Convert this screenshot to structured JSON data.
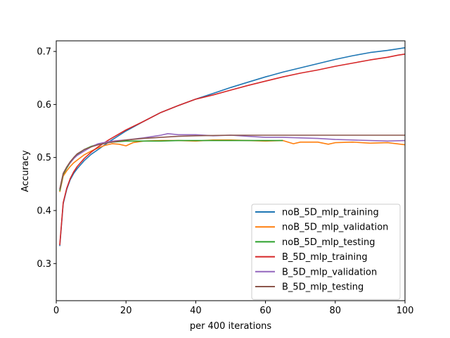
{
  "chart_data": {
    "type": "line",
    "xlabel": "per 400 iterations",
    "ylabel": "Accuracy",
    "xlim": [
      0,
      100
    ],
    "ylim": [
      0.23,
      0.72
    ],
    "xticks": [
      0,
      20,
      40,
      60,
      80,
      100
    ],
    "yticks": [
      0.3,
      0.4,
      0.5,
      0.6,
      0.7
    ],
    "ytick_labels": [
      "0.3",
      "0.4",
      "0.5",
      "0.6",
      "0.7"
    ],
    "grid": false,
    "legend_position": "lower-right",
    "series": [
      {
        "name": "noB_5D_mlp_training",
        "color": "#1f77b4",
        "x": [
          1,
          2,
          3,
          4,
          5,
          6,
          8,
          10,
          12,
          15,
          20,
          25,
          30,
          35,
          40,
          45,
          50,
          55,
          60,
          65,
          70,
          75,
          80,
          85,
          90,
          95,
          98,
          100
        ],
        "y": [
          0.333,
          0.413,
          0.44,
          0.458,
          0.47,
          0.479,
          0.494,
          0.506,
          0.515,
          0.529,
          0.55,
          0.568,
          0.585,
          0.598,
          0.61,
          0.621,
          0.632,
          0.642,
          0.652,
          0.661,
          0.669,
          0.677,
          0.685,
          0.692,
          0.698,
          0.702,
          0.705,
          0.707
        ]
      },
      {
        "name": "noB_5D_mlp_validation",
        "color": "#ff7f0e",
        "x": [
          1,
          2,
          3,
          4,
          5,
          6,
          8,
          10,
          12,
          14,
          16,
          18,
          20,
          22,
          25,
          30,
          35,
          40,
          45,
          50,
          55,
          60,
          65,
          68,
          70,
          75,
          78,
          80,
          85,
          90,
          95,
          100
        ],
        "y": [
          0.435,
          0.465,
          0.475,
          0.483,
          0.49,
          0.495,
          0.505,
          0.512,
          0.518,
          0.523,
          0.526,
          0.525,
          0.522,
          0.528,
          0.531,
          0.532,
          0.532,
          0.531,
          0.533,
          0.533,
          0.532,
          0.531,
          0.532,
          0.526,
          0.529,
          0.529,
          0.525,
          0.528,
          0.529,
          0.527,
          0.528,
          0.524
        ]
      },
      {
        "name": "noB_5D_mlp_testing",
        "color": "#2ca02c",
        "x": [
          1,
          2,
          3,
          4,
          5,
          6,
          8,
          10,
          12,
          14,
          16,
          18,
          20,
          25,
          30,
          35,
          40,
          45,
          50,
          55,
          60,
          65
        ],
        "y": [
          0.437,
          0.468,
          0.48,
          0.49,
          0.498,
          0.505,
          0.515,
          0.521,
          0.525,
          0.528,
          0.529,
          0.53,
          0.531,
          0.531,
          0.531,
          0.532,
          0.532,
          0.532,
          0.532,
          0.532,
          0.532,
          0.532
        ]
      },
      {
        "name": "B_5D_mlp_training",
        "color": "#d62728",
        "x": [
          1,
          2,
          3,
          4,
          5,
          6,
          8,
          10,
          12,
          15,
          20,
          25,
          30,
          35,
          40,
          45,
          50,
          55,
          60,
          65,
          70,
          75,
          80,
          85,
          90,
          95,
          98,
          100
        ],
        "y": [
          0.335,
          0.415,
          0.442,
          0.46,
          0.473,
          0.483,
          0.498,
          0.51,
          0.52,
          0.533,
          0.552,
          0.568,
          0.585,
          0.598,
          0.61,
          0.618,
          0.627,
          0.636,
          0.644,
          0.652,
          0.659,
          0.665,
          0.672,
          0.678,
          0.684,
          0.689,
          0.693,
          0.695
        ]
      },
      {
        "name": "B_5D_mlp_validation",
        "color": "#9467bd",
        "x": [
          1,
          2,
          3,
          4,
          5,
          6,
          8,
          10,
          12,
          15,
          18,
          20,
          25,
          28,
          30,
          32,
          35,
          40,
          45,
          50,
          55,
          60,
          65,
          70,
          75,
          80,
          85,
          90,
          95,
          100
        ],
        "y": [
          0.44,
          0.47,
          0.482,
          0.49,
          0.498,
          0.504,
          0.512,
          0.52,
          0.526,
          0.53,
          0.532,
          0.533,
          0.537,
          0.54,
          0.542,
          0.545,
          0.543,
          0.543,
          0.541,
          0.542,
          0.54,
          0.538,
          0.538,
          0.537,
          0.536,
          0.534,
          0.533,
          0.532,
          0.531,
          0.532
        ]
      },
      {
        "name": "B_5D_mlp_testing",
        "color": "#8c564b",
        "x": [
          1,
          2,
          3,
          4,
          5,
          6,
          8,
          10,
          12,
          15,
          18,
          20,
          25,
          30,
          35,
          40,
          50,
          60,
          70,
          80,
          90,
          100
        ],
        "y": [
          0.44,
          0.47,
          0.482,
          0.492,
          0.5,
          0.507,
          0.515,
          0.52,
          0.524,
          0.528,
          0.531,
          0.533,
          0.536,
          0.538,
          0.54,
          0.541,
          0.542,
          0.542,
          0.542,
          0.542,
          0.542,
          0.542
        ]
      }
    ]
  }
}
